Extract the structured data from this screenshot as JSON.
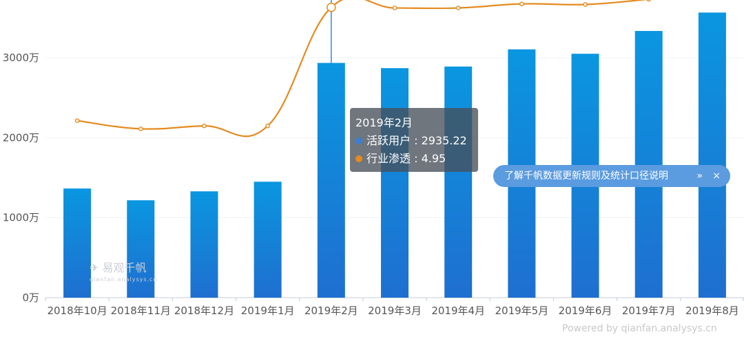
{
  "chart_data": {
    "type": "bar",
    "categories": [
      "2018年10月",
      "2018年11月",
      "2018年12月",
      "2019年1月",
      "2019年2月",
      "2019年3月",
      "2019年4月",
      "2019年5月",
      "2019年6月",
      "2019年7月",
      "2019年8月"
    ],
    "series": [
      {
        "name": "活跃用户",
        "type": "bar",
        "values": [
          1365,
          1218,
          1330,
          1450,
          2935.22,
          2870,
          2890,
          3105,
          3050,
          3335,
          3565
        ]
      },
      {
        "name": "行业渗透",
        "type": "line",
        "values": [
          3.0,
          2.86,
          2.91,
          2.91,
          4.95,
          4.94,
          4.94,
          5.01,
          5.0,
          5.09,
          null
        ]
      }
    ],
    "y_ticks": [
      "0万",
      "1000万",
      "2000万",
      "3000万"
    ],
    "ylim": [
      0,
      3700
    ],
    "grid": true,
    "colors": {
      "bar_top": "#0a96e0",
      "bar_bottom": "#1f6fd0",
      "line": "#e48a1e",
      "axis": "#cfd6de"
    }
  },
  "tooltip": {
    "title": "2019年2月",
    "row1": "活跃用户 : 2935.22",
    "row2": "行业渗透 : 4.95",
    "dot1_color": "#3a7fd5",
    "dot2_color": "#e48a1e"
  },
  "watermark": {
    "text": "易观千帆",
    "sub": "qianfan.analysys.cn"
  },
  "notice": {
    "text": "了解千帆数据更新规则及统计口径说明",
    "chevron": "»",
    "close": "×"
  },
  "footer": {
    "powered": "Powered by qianfan.analysys.cn"
  }
}
